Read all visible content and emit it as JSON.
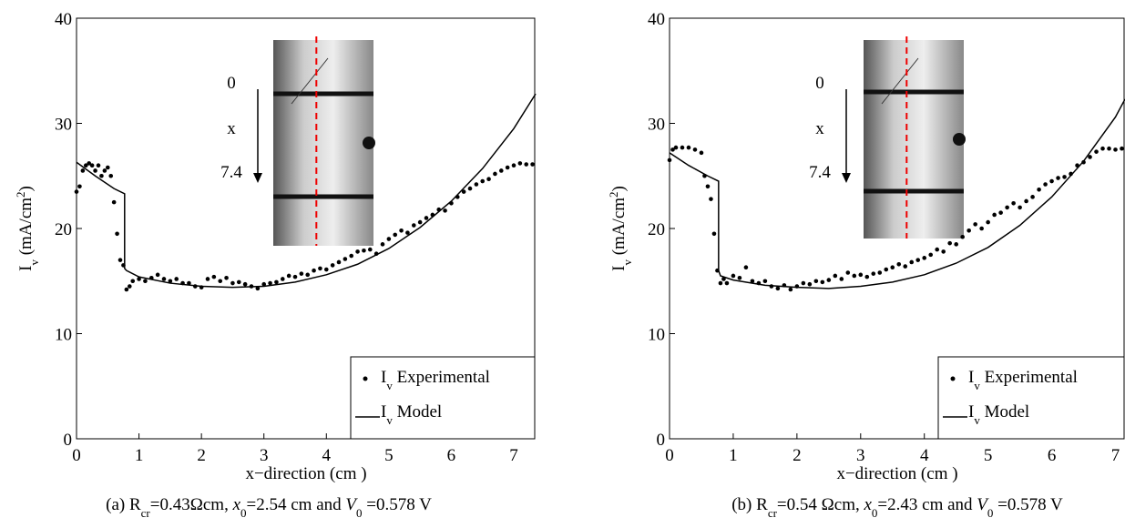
{
  "chart_data": [
    {
      "type": "scatter",
      "xlabel": "x−direction (cm )",
      "ylabel": [
        {
          "text": "I"
        },
        {
          "text": "v",
          "sub": true
        },
        {
          "text": " (mA/cm"
        },
        {
          "text": "2",
          "sup": true
        },
        {
          "text": ")"
        }
      ],
      "caption": [
        {
          "text": "(a)  R"
        },
        {
          "text": "cr",
          "sub": true
        },
        {
          "text": "=0.43Ωcm, "
        },
        {
          "text": "x",
          "italic": true
        },
        {
          "text": "0",
          "sub": true
        },
        {
          "text": "=2.54 cm and "
        },
        {
          "text": "V",
          "italic": true
        },
        {
          "text": "0",
          "sub": true
        },
        {
          "text": " =0.578 V"
        }
      ],
      "inset_labels": [
        "0",
        "x",
        "7.4"
      ],
      "xlim": [
        0,
        7.35
      ],
      "ylim": [
        0,
        40
      ],
      "xticks": [
        0,
        1,
        2,
        3,
        4,
        5,
        6,
        7
      ],
      "yticks": [
        0,
        10,
        20,
        30,
        40
      ],
      "legend": "lower right",
      "series": [
        {
          "name": [
            {
              "text": "I"
            },
            {
              "text": "v",
              "sub": true
            },
            {
              "text": " Experimental"
            }
          ],
          "kind": "points",
          "color": "#000000",
          "x": [
            0,
            0.05,
            0.1,
            0.15,
            0.2,
            0.25,
            0.3,
            0.35,
            0.4,
            0.45,
            0.5,
            0.55,
            0.6,
            0.65,
            0.7,
            0.75,
            0.8,
            0.85,
            0.9,
            1,
            1.1,
            1.2,
            1.3,
            1.4,
            1.5,
            1.6,
            1.7,
            1.8,
            1.9,
            2,
            2.1,
            2.2,
            2.3,
            2.4,
            2.5,
            2.6,
            2.7,
            2.8,
            2.9,
            3,
            3.1,
            3.2,
            3.3,
            3.4,
            3.5,
            3.6,
            3.7,
            3.8,
            3.9,
            4,
            4.1,
            4.2,
            4.3,
            4.4,
            4.5,
            4.6,
            4.7,
            4.8,
            4.9,
            5,
            5.1,
            5.2,
            5.3,
            5.4,
            5.5,
            5.6,
            5.7,
            5.8,
            5.9,
            6,
            6.1,
            6.2,
            6.3,
            6.4,
            6.5,
            6.6,
            6.7,
            6.8,
            6.9,
            7,
            7.1,
            7.2,
            7.3
          ],
          "values": [
            23.5,
            24,
            25.5,
            26,
            26.2,
            26,
            25.5,
            26,
            25,
            25.5,
            25.8,
            25,
            22.5,
            19.5,
            17,
            16.5,
            14.2,
            14.5,
            15,
            15.2,
            15,
            15.3,
            15.6,
            15.2,
            15,
            15.2,
            14.8,
            14.8,
            14.5,
            14.4,
            15.2,
            15.4,
            15,
            15.3,
            14.8,
            14.9,
            14.7,
            14.5,
            14.3,
            14.7,
            14.8,
            14.9,
            15.2,
            15.5,
            15.4,
            15.7,
            15.6,
            16,
            16.2,
            16.1,
            16.5,
            16.8,
            17.1,
            17.4,
            17.8,
            17.9,
            18,
            17.6,
            18.5,
            19,
            19.4,
            19.8,
            19.6,
            20.3,
            20.6,
            21,
            21.3,
            21.8,
            21.7,
            22.4,
            23,
            23.5,
            23.8,
            24.2,
            24.5,
            24.7,
            25.2,
            25.5,
            25.8,
            26,
            26.2,
            26.1,
            26.1
          ]
        },
        {
          "name": [
            {
              "text": "I"
            },
            {
              "text": "v",
              "sub": true
            },
            {
              "text": " Model"
            }
          ],
          "kind": "line",
          "color": "#000000",
          "x": [
            0,
            0.3,
            0.6,
            0.77,
            0.77,
            0.8,
            1,
            1.5,
            2,
            2.5,
            3,
            3.5,
            4,
            4.5,
            5,
            5.5,
            6,
            6.5,
            7,
            7.35
          ],
          "values": [
            26.3,
            25,
            23.8,
            23.3,
            16.2,
            16,
            15.4,
            14.8,
            14.5,
            14.4,
            14.5,
            14.9,
            15.6,
            16.6,
            18.1,
            20.1,
            22.6,
            25.7,
            29.5,
            32.8
          ]
        }
      ]
    },
    {
      "type": "scatter",
      "xlabel": "x−direction (cm )",
      "ylabel": [
        {
          "text": "I"
        },
        {
          "text": "v",
          "sub": true
        },
        {
          "text": " (mA/cm"
        },
        {
          "text": "2",
          "sup": true
        },
        {
          "text": ")"
        }
      ],
      "caption": [
        {
          "text": "(b) R"
        },
        {
          "text": "cr",
          "sub": true
        },
        {
          "text": "=0.54 Ωcm, "
        },
        {
          "text": "x",
          "italic": true
        },
        {
          "text": "0",
          "sub": true
        },
        {
          "text": "=2.43 cm and "
        },
        {
          "text": "V",
          "italic": true
        },
        {
          "text": "0",
          "sub": true
        },
        {
          "text": " =0.578 V"
        }
      ],
      "inset_labels": [
        "0",
        "x",
        "7.4"
      ],
      "xlim": [
        0,
        7.15
      ],
      "ylim": [
        0,
        40
      ],
      "xticks": [
        0,
        1,
        2,
        3,
        4,
        5,
        6,
        7
      ],
      "yticks": [
        0,
        10,
        20,
        30,
        40
      ],
      "legend": "lower right",
      "series": [
        {
          "name": [
            {
              "text": "I"
            },
            {
              "text": "v",
              "sub": true
            },
            {
              "text": " Experimental"
            }
          ],
          "kind": "points",
          "color": "#000000",
          "x": [
            0,
            0.05,
            0.1,
            0.2,
            0.3,
            0.4,
            0.5,
            0.55,
            0.6,
            0.65,
            0.7,
            0.75,
            0.8,
            0.85,
            0.9,
            1,
            1.1,
            1.2,
            1.3,
            1.4,
            1.5,
            1.6,
            1.7,
            1.8,
            1.9,
            2,
            2.1,
            2.2,
            2.3,
            2.4,
            2.5,
            2.6,
            2.7,
            2.8,
            2.9,
            3,
            3.1,
            3.2,
            3.3,
            3.4,
            3.5,
            3.6,
            3.7,
            3.8,
            3.9,
            4,
            4.1,
            4.2,
            4.3,
            4.4,
            4.5,
            4.6,
            4.7,
            4.8,
            4.9,
            5,
            5.1,
            5.2,
            5.3,
            5.4,
            5.5,
            5.6,
            5.7,
            5.8,
            5.9,
            6,
            6.1,
            6.2,
            6.3,
            6.4,
            6.5,
            6.6,
            6.7,
            6.8,
            6.9,
            7,
            7.1
          ],
          "values": [
            26.5,
            27.5,
            27.7,
            27.7,
            27.7,
            27.5,
            27.2,
            25,
            24,
            22.8,
            19.5,
            16,
            14.8,
            15.2,
            14.8,
            15.5,
            15.3,
            16.3,
            15,
            14.8,
            15,
            14.5,
            14.3,
            14.6,
            14.2,
            14.5,
            14.8,
            14.7,
            15,
            14.9,
            15.1,
            15.5,
            15.2,
            15.8,
            15.5,
            15.6,
            15.4,
            15.7,
            15.8,
            16.1,
            16.3,
            16.6,
            16.4,
            16.8,
            17,
            17.2,
            17.5,
            18,
            17.8,
            18.6,
            18.5,
            19.2,
            19.8,
            20.4,
            20,
            20.6,
            21.3,
            21.5,
            22,
            22.4,
            22,
            22.6,
            23,
            23.7,
            24.2,
            24.5,
            24.8,
            24.9,
            25.2,
            26,
            26.3,
            26.8,
            27.3,
            27.6,
            27.6,
            27.5,
            27.6
          ]
        },
        {
          "name": [
            {
              "text": "I"
            },
            {
              "text": "v",
              "sub": true
            },
            {
              "text": " Model"
            }
          ],
          "kind": "line",
          "color": "#000000",
          "x": [
            0,
            0.3,
            0.6,
            0.77,
            0.77,
            0.8,
            1,
            1.5,
            2,
            2.5,
            3,
            3.5,
            4,
            4.5,
            5,
            5.5,
            6,
            6.5,
            7,
            7.15
          ],
          "values": [
            27.2,
            26,
            25,
            24.5,
            16,
            15.5,
            15.1,
            14.6,
            14.4,
            14.3,
            14.5,
            14.9,
            15.6,
            16.7,
            18.2,
            20.3,
            23,
            26.4,
            30.6,
            32.3
          ]
        }
      ]
    }
  ]
}
